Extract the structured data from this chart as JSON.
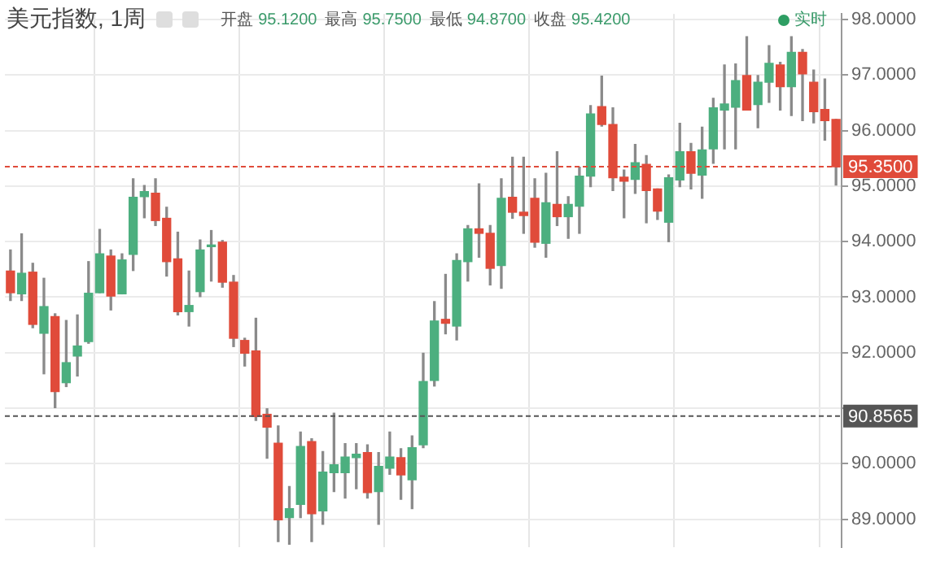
{
  "chart_data": {
    "type": "candlestick",
    "title": "美元指数, 1周",
    "annotations": [
      "开盘 95.1200 最高 95.7500 最低 94.8700 收盘 95.4200",
      "实时"
    ],
    "categories": [
      null,
      null,
      null,
      null,
      null,
      null,
      null,
      null,
      null,
      null,
      null,
      null,
      null,
      null,
      null,
      null,
      null,
      null,
      null,
      null,
      null,
      null,
      null,
      null,
      null,
      null,
      null,
      null,
      null,
      null,
      null,
      null,
      null,
      null,
      null,
      null,
      null,
      null,
      null,
      null,
      null,
      null,
      null,
      null,
      null,
      null,
      null,
      null,
      null,
      null,
      null,
      null,
      null,
      null,
      null,
      null,
      null,
      null,
      null,
      null,
      null,
      null,
      null,
      null,
      null,
      null,
      null,
      null,
      null,
      null,
      null,
      null,
      null,
      null,
      null
    ],
    "ohlc": [
      [
        93.47,
        93.85,
        92.94,
        93.08
      ],
      [
        93.06,
        94.14,
        92.94,
        93.43
      ],
      [
        93.45,
        93.61,
        92.45,
        92.51
      ],
      [
        92.35,
        93.34,
        91.62,
        92.83
      ],
      [
        92.65,
        92.7,
        91.01,
        91.3
      ],
      [
        91.46,
        92.58,
        91.39,
        91.82
      ],
      [
        91.94,
        92.68,
        91.58,
        92.12
      ],
      [
        92.2,
        93.64,
        92.17,
        93.07
      ],
      [
        93.08,
        94.22,
        93.08,
        93.78
      ],
      [
        93.74,
        93.85,
        92.77,
        93.02
      ],
      [
        93.06,
        93.78,
        93.06,
        93.67
      ],
      [
        93.77,
        95.13,
        93.48,
        94.8
      ],
      [
        94.81,
        95.01,
        94.43,
        94.9
      ],
      [
        94.87,
        95.13,
        94.29,
        94.38
      ],
      [
        94.42,
        94.62,
        93.38,
        93.64
      ],
      [
        93.69,
        94.17,
        92.68,
        92.74
      ],
      [
        92.74,
        93.47,
        92.48,
        92.85
      ],
      [
        93.1,
        94.03,
        93.01,
        93.85
      ],
      [
        93.91,
        94.2,
        93.29,
        93.93
      ],
      [
        93.99,
        94.02,
        93.18,
        93.27
      ],
      [
        93.27,
        93.39,
        92.11,
        92.26
      ],
      [
        92.22,
        92.26,
        91.76,
        91.99
      ],
      [
        92.03,
        92.62,
        90.78,
        90.85
      ],
      [
        90.89,
        90.99,
        90.1,
        90.66
      ],
      [
        90.37,
        90.68,
        88.6,
        88.99
      ],
      [
        89.03,
        89.59,
        88.55,
        89.19
      ],
      [
        89.27,
        90.57,
        89.03,
        90.31
      ],
      [
        90.4,
        90.45,
        88.6,
        89.1
      ],
      [
        89.15,
        90.22,
        88.91,
        89.85
      ],
      [
        89.84,
        90.91,
        89.5,
        89.98
      ],
      [
        89.84,
        90.36,
        89.38,
        90.12
      ],
      [
        90.11,
        90.36,
        89.55,
        90.17
      ],
      [
        90.2,
        90.34,
        89.38,
        89.48
      ],
      [
        89.5,
        90.2,
        88.91,
        89.95
      ],
      [
        89.92,
        90.57,
        89.81,
        90.12
      ],
      [
        90.11,
        90.27,
        89.36,
        89.8
      ],
      [
        89.71,
        90.5,
        89.19,
        90.29
      ],
      [
        90.34,
        91.99,
        90.29,
        91.48
      ],
      [
        91.5,
        92.92,
        91.4,
        92.57
      ],
      [
        92.6,
        93.41,
        92.34,
        92.53
      ],
      [
        92.48,
        93.78,
        92.23,
        93.66
      ],
      [
        93.64,
        94.29,
        93.29,
        94.23
      ],
      [
        94.23,
        95.04,
        93.72,
        94.15
      ],
      [
        94.15,
        94.29,
        93.22,
        93.52
      ],
      [
        93.57,
        95.13,
        93.16,
        94.78
      ],
      [
        94.8,
        95.52,
        94.42,
        94.53
      ],
      [
        94.53,
        95.52,
        94.15,
        94.47
      ],
      [
        94.78,
        95.13,
        93.9,
        93.99
      ],
      [
        93.97,
        95.23,
        93.72,
        94.7
      ],
      [
        94.67,
        95.62,
        94.29,
        94.45
      ],
      [
        94.45,
        94.81,
        94.06,
        94.67
      ],
      [
        94.64,
        95.34,
        94.15,
        95.18
      ],
      [
        95.18,
        96.45,
        94.99,
        96.3
      ],
      [
        96.43,
        96.98,
        96.08,
        96.11
      ],
      [
        96.11,
        96.41,
        94.92,
        95.15
      ],
      [
        95.16,
        95.29,
        94.43,
        95.09
      ],
      [
        95.12,
        95.75,
        94.87,
        95.42
      ],
      [
        95.39,
        95.55,
        94.34,
        94.92
      ],
      [
        94.95,
        94.95,
        94.4,
        94.55
      ],
      [
        94.35,
        95.2,
        94.0,
        95.15
      ],
      [
        95.11,
        96.13,
        94.99,
        95.62
      ],
      [
        95.62,
        95.77,
        94.95,
        95.23
      ],
      [
        95.2,
        96.06,
        94.78,
        95.65
      ],
      [
        95.67,
        96.58,
        95.41,
        96.41
      ],
      [
        96.37,
        97.18,
        95.67,
        96.48
      ],
      [
        96.42,
        97.2,
        95.67,
        96.9
      ],
      [
        96.99,
        97.69,
        96.37,
        96.37
      ],
      [
        96.47,
        96.99,
        96.05,
        96.87
      ],
      [
        96.87,
        97.53,
        96.51,
        97.21
      ],
      [
        97.18,
        97.23,
        96.37,
        96.79
      ],
      [
        96.79,
        97.69,
        96.27,
        97.41
      ],
      [
        97.41,
        97.46,
        96.18,
        97.02
      ],
      [
        96.87,
        97.09,
        96.14,
        96.34
      ],
      [
        96.38,
        96.93,
        95.83,
        96.18
      ],
      [
        96.2,
        96.2,
        95.02,
        95.35
      ]
    ],
    "colors": [
      "#e04b3a",
      "#4caf7f",
      "#e04b3a",
      "#4caf7f",
      "#e04b3a",
      "#4caf7f",
      "#4caf7f",
      "#4caf7f",
      "#4caf7f",
      "#e04b3a",
      "#4caf7f",
      "#4caf7f",
      "#4caf7f",
      "#e04b3a",
      "#e04b3a",
      "#e04b3a",
      "#4caf7f",
      "#4caf7f",
      "#4caf7f",
      "#e04b3a",
      "#e04b3a",
      "#e04b3a",
      "#e04b3a",
      "#e04b3a",
      "#e04b3a",
      "#4caf7f",
      "#4caf7f",
      "#e04b3a",
      "#4caf7f",
      "#4caf7f",
      "#4caf7f",
      "#4caf7f",
      "#e04b3a",
      "#4caf7f",
      "#4caf7f",
      "#e04b3a",
      "#4caf7f",
      "#4caf7f",
      "#4caf7f",
      "#e04b3a",
      "#4caf7f",
      "#4caf7f",
      "#e04b3a",
      "#e04b3a",
      "#4caf7f",
      "#e04b3a",
      "#e04b3a",
      "#e04b3a",
      "#4caf7f",
      "#e04b3a",
      "#4caf7f",
      "#4caf7f",
      "#4caf7f",
      "#e04b3a",
      "#e04b3a",
      "#e04b3a",
      "#4caf7f",
      "#e04b3a",
      "#e04b3a",
      "#4caf7f",
      "#4caf7f",
      "#e04b3a",
      "#4caf7f",
      "#4caf7f",
      "#4caf7f",
      "#4caf7f",
      "#e04b3a",
      "#4caf7f",
      "#4caf7f",
      "#e04b3a",
      "#4caf7f",
      "#e04b3a",
      "#e04b3a",
      "#e04b3a",
      "#e04b3a"
    ],
    "ylim": [
      88.5,
      98.1
    ],
    "yticks": [
      {
        "value": 89,
        "label": "89.0000"
      },
      {
        "value": 90,
        "label": "90.0000"
      },
      {
        "value": 91,
        "label": null
      },
      {
        "value": 92,
        "label": "92.0000"
      },
      {
        "value": 93,
        "label": "93.0000"
      },
      {
        "value": 94,
        "label": "94.0000"
      },
      {
        "value": 95,
        "label": "95.0000"
      },
      {
        "value": 96,
        "label": "96.0000"
      },
      {
        "value": 97,
        "label": "97.0000"
      },
      {
        "value": 98,
        "label": "98.0000"
      }
    ],
    "ref_lines": [
      {
        "axis": "y",
        "value": 95.35,
        "label": "95.3500",
        "color": "#e04b3a",
        "line_style": "dashed"
      },
      {
        "axis": "y",
        "value": 90.8565,
        "label": "90.8565",
        "color": "#555555",
        "line_style": "dashed"
      }
    ],
    "grid": true
  }
}
